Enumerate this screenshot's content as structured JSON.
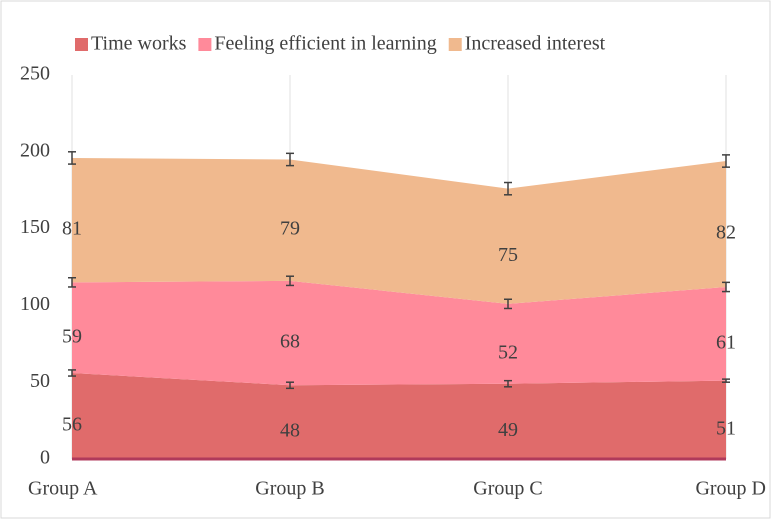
{
  "chart_data": {
    "type": "stacked_area",
    "categories": [
      "Group A",
      "Group B",
      "Group C",
      "Group D"
    ],
    "series": [
      {
        "name": "Time works",
        "color": "#e06b6b",
        "values": [
          56,
          48,
          49,
          51
        ],
        "errors": [
          2,
          2,
          2,
          1
        ]
      },
      {
        "name": "Feeling efficient in learning",
        "color": "#ff8a9a",
        "values": [
          59,
          68,
          52,
          61
        ],
        "errors": [
          3,
          3,
          3,
          3
        ]
      },
      {
        "name": "Increased interest",
        "color": "#f0b98e",
        "values": [
          81,
          79,
          75,
          82
        ],
        "errors": [
          4,
          4,
          4,
          4
        ]
      }
    ],
    "ylim": [
      0,
      250
    ],
    "yticks": [
      0,
      50,
      100,
      150,
      200,
      250
    ],
    "legend": "top"
  }
}
